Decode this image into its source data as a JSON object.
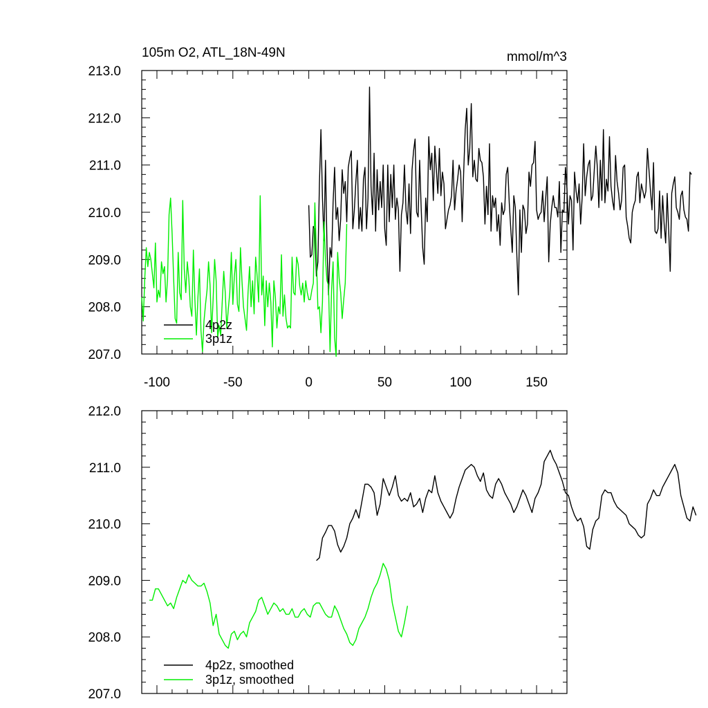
{
  "chart_data": [
    {
      "type": "line",
      "title": "105m O2, ATL_18N-49N",
      "units_label": "mmol/m^3",
      "xlim": [
        -110,
        170
      ],
      "ylim": [
        207.0,
        213.0
      ],
      "xticks": [
        -100,
        -50,
        0,
        50,
        100,
        150
      ],
      "xtick_labels": [
        "-100",
        "-50",
        "0",
        "50",
        "100",
        "150"
      ],
      "yticks": [
        207.0,
        208.0,
        209.0,
        210.0,
        211.0,
        212.0,
        213.0
      ],
      "ytick_labels": [
        "207.0",
        "208.0",
        "209.0",
        "210.0",
        "211.0",
        "212.0",
        "213.0"
      ],
      "legend_position": "lower-left",
      "grid": false,
      "series": [
        {
          "name": "4p2z",
          "color": "#000000",
          "x_start": 0,
          "x_step": 1,
          "values": [
            210.15,
            209.05,
            209.1,
            209.7,
            209.65,
            208.65,
            208.95,
            210.6,
            211.75,
            210.3,
            209.4,
            211.1,
            209.25,
            208.25,
            209.25,
            209.05,
            210.2,
            210.95,
            209.85,
            210.1,
            209.4,
            209.85,
            210.9,
            210.4,
            210.65,
            209.8,
            210.95,
            211.15,
            211.3,
            209.65,
            210.05,
            210.65,
            211.1,
            209.65,
            210.1,
            209.6,
            210.7,
            210.95,
            209.65,
            210.3,
            212.65,
            210.55,
            209.95,
            211.25,
            209.6,
            210.9,
            210.05,
            210.65,
            210.1,
            211.0,
            209.65,
            209.3,
            211.0,
            209.8,
            210.8,
            210.1,
            211.0,
            209.85,
            210.3,
            210.05,
            208.75,
            209.95,
            210.2,
            211.0,
            210.05,
            209.75,
            210.6,
            209.55,
            210.9,
            211.3,
            211.55,
            210.0,
            209.9,
            211.1,
            210.1,
            209.25,
            208.9,
            210.3,
            209.8,
            211.6,
            210.9,
            211.25,
            210.25,
            211.4,
            210.9,
            210.4,
            211.35,
            210.35,
            210.85,
            210.6,
            209.65,
            209.85,
            210.05,
            210.15,
            210.35,
            211.1,
            210.05,
            210.45,
            210.7,
            211.0,
            210.85,
            209.8,
            210.85,
            211.75,
            212.2,
            211.0,
            211.35,
            212.3,
            210.75,
            211.1,
            210.7,
            210.65,
            211.35,
            211.1,
            211.05,
            210.75,
            209.75,
            210.55,
            209.95,
            211.45,
            209.6,
            210.35,
            210.1,
            210.3,
            209.6,
            209.95,
            209.3,
            210.2,
            209.95,
            210.05,
            210.8,
            210.95,
            210.2,
            209.65,
            209.15,
            210.35,
            210.1,
            209.1,
            208.25,
            210.05,
            209.15,
            210.15,
            210.05,
            209.55,
            209.75,
            210.85,
            210.55,
            211.0,
            211.05,
            211.5,
            210.05,
            209.85,
            209.95,
            210.0,
            210.45,
            209.8,
            210.3,
            210.75,
            208.95,
            209.75,
            210.1,
            210.35,
            210.1,
            210.1,
            209.9,
            210.65,
            209.15,
            210.05,
            210.0,
            210.95,
            210.5,
            209.75,
            210.35,
            210.25,
            209.2,
            210.85,
            210.45,
            210.2,
            210.6,
            209.75,
            210.3,
            211.45,
            210.35,
            210.75,
            211.0,
            211.1,
            210.25,
            210.35,
            210.9,
            211.4,
            210.95,
            210.1,
            211.1,
            210.25,
            211.75,
            210.2,
            210.7,
            210.45,
            211.6,
            210.55,
            210.25,
            210.05,
            211.2,
            210.65,
            210.4,
            210.05,
            210.25,
            210.95,
            211.0,
            209.9,
            209.7,
            209.45,
            209.35,
            210.0,
            210.15,
            210.25,
            210.75,
            210.85,
            210.2,
            210.6,
            210.45,
            210.3,
            210.45,
            211.35,
            210.9,
            210.45,
            210.05,
            211.05,
            209.6,
            209.55,
            209.65,
            210.45,
            209.45,
            210.35,
            209.75,
            209.35,
            210.4,
            209.6,
            208.75,
            210.4,
            210.6,
            210.75,
            210.1,
            210.0,
            209.85,
            210.35,
            210.45,
            210.05,
            209.9,
            209.85,
            209.6,
            210.85,
            210.8
          ]
        },
        {
          "name": "3p1z",
          "color": "#00ee00",
          "x_start": -110,
          "x_step": 1,
          "values": [
            208.2,
            207.7,
            208.6,
            209.25,
            208.85,
            209.15,
            209.0,
            208.7,
            208.4,
            209.35,
            208.1,
            208.35,
            208.2,
            208.95,
            208.7,
            208.85,
            208.1,
            208.6,
            209.95,
            210.3,
            209.55,
            208.6,
            207.75,
            207.65,
            209.15,
            208.3,
            208.15,
            210.25,
            208.8,
            208.3,
            208.95,
            208.6,
            208.0,
            207.8,
            209.2,
            208.15,
            207.4,
            208.2,
            208.8,
            207.5,
            207.05,
            207.7,
            208.05,
            208.35,
            208.95,
            208.45,
            207.45,
            208.15,
            209.0,
            208.55,
            207.35,
            207.6,
            207.4,
            208.1,
            208.75,
            208.3,
            207.55,
            207.95,
            208.3,
            209.15,
            208.05,
            208.65,
            209.0,
            208.05,
            207.9,
            209.25,
            208.55,
            208.0,
            207.75,
            207.5,
            208.3,
            208.85,
            208.0,
            208.55,
            207.85,
            209.05,
            208.65,
            208.1,
            210.35,
            208.25,
            208.65,
            207.6,
            208.55,
            208.0,
            208.5,
            208.1,
            207.15,
            208.55,
            208.2,
            207.55,
            208.0,
            207.85,
            209.1,
            207.8,
            208.25,
            207.75,
            207.55,
            207.6,
            207.55,
            209.05,
            208.3,
            208.25,
            209.05,
            208.9,
            208.45,
            208.25,
            208.5,
            208.1,
            208.55,
            208.3,
            208.15,
            208.15,
            208.35,
            208.5,
            210.2,
            209.1,
            207.95,
            208.0,
            207.45,
            208.1,
            209.8,
            209.0,
            208.55,
            208.45,
            207.05,
            208.35,
            208.95,
            207.35,
            206.95,
            209.15,
            208.6,
            208.3,
            207.75,
            208.15,
            208.5,
            209.75
          ]
        }
      ]
    },
    {
      "type": "line",
      "xlim": [
        -110,
        170
      ],
      "ylim": [
        207.0,
        212.0
      ],
      "xticks": [
        -100,
        -50,
        0,
        50,
        100,
        150
      ],
      "yticks": [
        207.0,
        208.0,
        209.0,
        210.0,
        211.0,
        212.0
      ],
      "ytick_labels": [
        "207.0",
        "208.0",
        "209.0",
        "210.0",
        "211.0",
        "212.0"
      ],
      "legend_position": "lower-left",
      "grid": false,
      "series": [
        {
          "name": "4p2z, smoothed",
          "color": "#000000",
          "x_start": 5,
          "x_step": 2,
          "values": [
            209.35,
            209.4,
            209.75,
            209.85,
            209.97,
            209.97,
            209.87,
            209.63,
            209.5,
            209.6,
            209.75,
            210.0,
            210.1,
            210.25,
            210.1,
            210.4,
            210.7,
            210.7,
            210.65,
            210.55,
            210.15,
            210.35,
            210.8,
            210.65,
            210.5,
            210.65,
            210.85,
            210.5,
            210.4,
            210.45,
            210.4,
            210.55,
            210.3,
            210.35,
            210.45,
            210.2,
            210.45,
            210.6,
            210.55,
            210.85,
            210.55,
            210.4,
            210.3,
            210.2,
            210.1,
            210.2,
            210.45,
            210.65,
            210.8,
            210.95,
            211.0,
            211.05,
            211.0,
            210.85,
            210.75,
            210.9,
            210.6,
            210.5,
            210.45,
            210.7,
            210.8,
            210.7,
            210.55,
            210.45,
            210.35,
            210.2,
            210.3,
            210.45,
            210.6,
            210.5,
            210.35,
            210.2,
            210.45,
            210.55,
            210.7,
            211.1,
            211.2,
            211.3,
            211.15,
            211.05,
            210.9,
            210.75,
            210.55,
            210.5,
            210.3,
            210.15,
            210.05,
            210.1,
            209.95,
            209.6,
            209.55,
            209.9,
            210.05,
            210.1,
            210.5,
            210.6,
            210.55,
            210.55,
            210.4,
            210.3,
            210.25,
            210.2,
            210.15,
            210.0,
            209.95,
            209.9,
            209.8,
            209.75,
            209.8,
            210.35,
            210.45,
            210.6,
            210.5,
            210.5,
            210.65,
            210.75,
            210.85,
            210.95,
            211.05,
            210.9,
            210.5,
            210.3,
            210.1,
            210.05,
            210.3,
            210.15
          ]
        },
        {
          "name": "3p1z, smoothed",
          "color": "#00ee00",
          "x_start": -105,
          "x_step": 2,
          "values": [
            208.65,
            208.65,
            208.85,
            208.85,
            208.75,
            208.65,
            208.55,
            208.6,
            208.5,
            208.7,
            208.85,
            209.0,
            208.95,
            209.1,
            209.0,
            208.95,
            208.9,
            208.9,
            208.95,
            208.8,
            208.6,
            208.2,
            208.4,
            208.05,
            207.95,
            207.85,
            207.8,
            208.05,
            208.1,
            207.95,
            208.05,
            208.1,
            208.0,
            208.25,
            208.35,
            208.45,
            208.65,
            208.7,
            208.55,
            208.4,
            208.5,
            208.6,
            208.55,
            208.45,
            208.5,
            208.4,
            208.4,
            208.5,
            208.35,
            208.35,
            208.45,
            208.5,
            208.4,
            208.35,
            208.55,
            208.6,
            208.6,
            208.5,
            208.4,
            208.35,
            208.35,
            208.55,
            208.45,
            208.3,
            208.15,
            208.05,
            207.9,
            207.85,
            207.95,
            208.15,
            208.25,
            208.35,
            208.5,
            208.7,
            208.85,
            208.95,
            209.1,
            209.3,
            209.2,
            209.0,
            208.6,
            208.35,
            208.1,
            208.0,
            208.25,
            208.55
          ]
        }
      ]
    }
  ]
}
